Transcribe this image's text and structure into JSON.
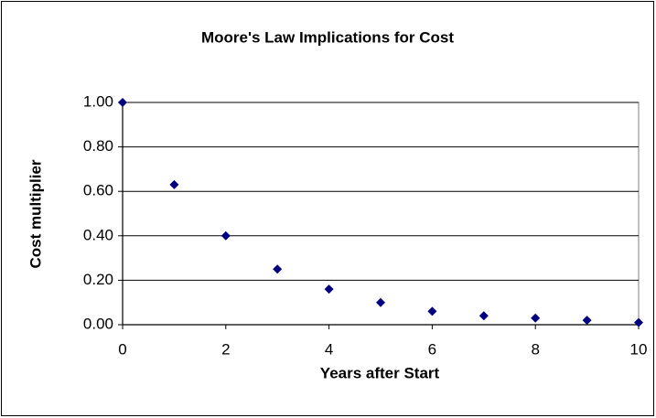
{
  "chart_data": {
    "type": "scatter",
    "title": "Moore's Law Implications for Cost",
    "x_label": "Years after Start",
    "y_label": "Cost multiplier",
    "x": [
      0,
      1,
      2,
      3,
      4,
      5,
      6,
      7,
      8,
      9,
      10
    ],
    "values": [
      1.0,
      0.63,
      0.4,
      0.25,
      0.16,
      0.1,
      0.06,
      0.04,
      0.03,
      0.02,
      0.01
    ],
    "color": "#000080",
    "xlim": [
      0,
      10
    ],
    "xticks": [
      0,
      2,
      4,
      6,
      8,
      10
    ],
    "ylim": [
      0,
      1
    ],
    "yticks": [
      {
        "value": 0,
        "label": "0.00"
      },
      {
        "value": 0.2,
        "label": "0.20"
      },
      {
        "value": 0.4,
        "label": "0.40"
      },
      {
        "value": 0.6,
        "label": "0.60"
      },
      {
        "value": 0.8,
        "label": "0.80"
      },
      {
        "value": 1,
        "label": "1.00"
      }
    ],
    "grid": true
  }
}
